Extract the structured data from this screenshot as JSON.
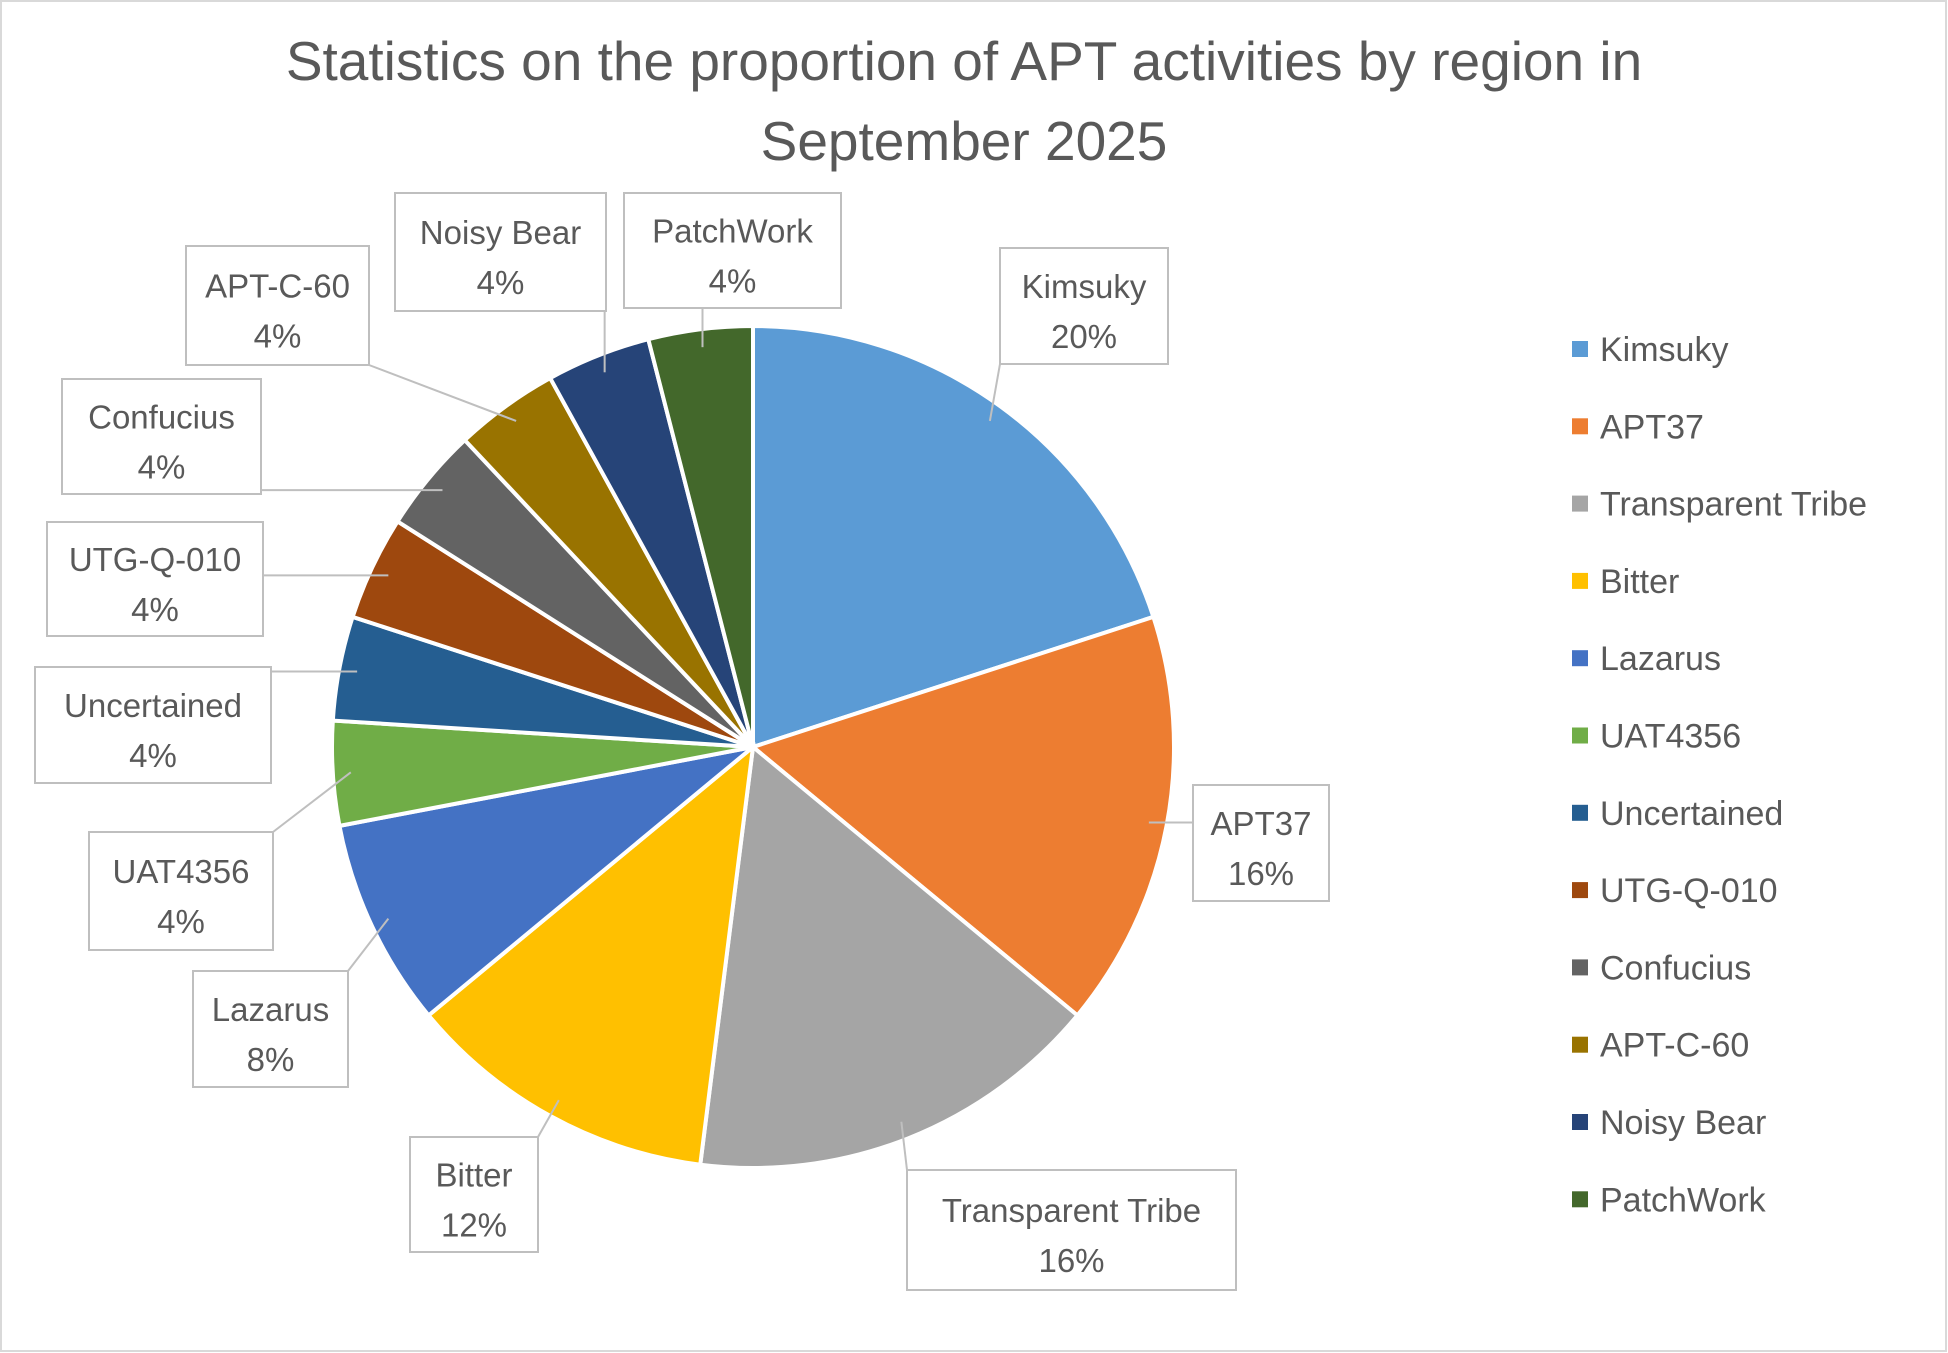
{
  "chart_data": {
    "type": "pie",
    "title": "Statistics on the proportion of APT activities by region in September 2025",
    "title_lines": [
      "Statistics on the proportion of APT activities by region in",
      "September 2025"
    ],
    "legend_position": "right",
    "unit": "%",
    "slices": [
      {
        "name": "Kimsuky",
        "value": 20,
        "label": "20%",
        "color": "#5B9BD5"
      },
      {
        "name": "APT37",
        "value": 16,
        "label": "16%",
        "color": "#ED7D31"
      },
      {
        "name": "Transparent Tribe",
        "value": 16,
        "label": "16%",
        "color": "#A5A5A5"
      },
      {
        "name": "Bitter",
        "value": 12,
        "label": "12%",
        "color": "#FFC000"
      },
      {
        "name": "Lazarus",
        "value": 8,
        "label": "8%",
        "color": "#4472C4"
      },
      {
        "name": "UAT4356",
        "value": 4,
        "label": "4%",
        "color": "#70AD47"
      },
      {
        "name": "Uncertained",
        "value": 4,
        "label": "4%",
        "color": "#255E91"
      },
      {
        "name": "UTG-Q-010",
        "value": 4,
        "label": "4%",
        "color": "#9E480E"
      },
      {
        "name": "Confucius",
        "value": 4,
        "label": "4%",
        "color": "#636363"
      },
      {
        "name": "APT-C-60",
        "value": 4,
        "label": "4%",
        "color": "#997300"
      },
      {
        "name": "Noisy Bear",
        "value": 4,
        "label": "4%",
        "color": "#264478"
      },
      {
        "name": "PatchWork",
        "value": 4,
        "label": "4%",
        "color": "#43682B"
      }
    ]
  }
}
